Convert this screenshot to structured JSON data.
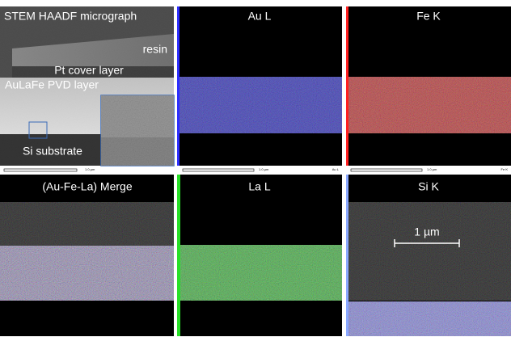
{
  "panels": [
    {
      "title": "STEM HAADF micrograph",
      "labels": [
        "resin",
        "Pt cover layer",
        "AuLaFe PVD layer",
        "Si substrate"
      ],
      "scale": "1.0 µm"
    },
    {
      "title": "Au L",
      "scale": "1.0 µm",
      "tag": "Au L"
    },
    {
      "title": "Fe K",
      "scale": "1.0 µm",
      "tag": "Fe K"
    },
    {
      "title": "(Au-Fe-La) Merge"
    },
    {
      "title": "La L"
    },
    {
      "title": "Si K",
      "scalebar": "1 µm"
    }
  ]
}
